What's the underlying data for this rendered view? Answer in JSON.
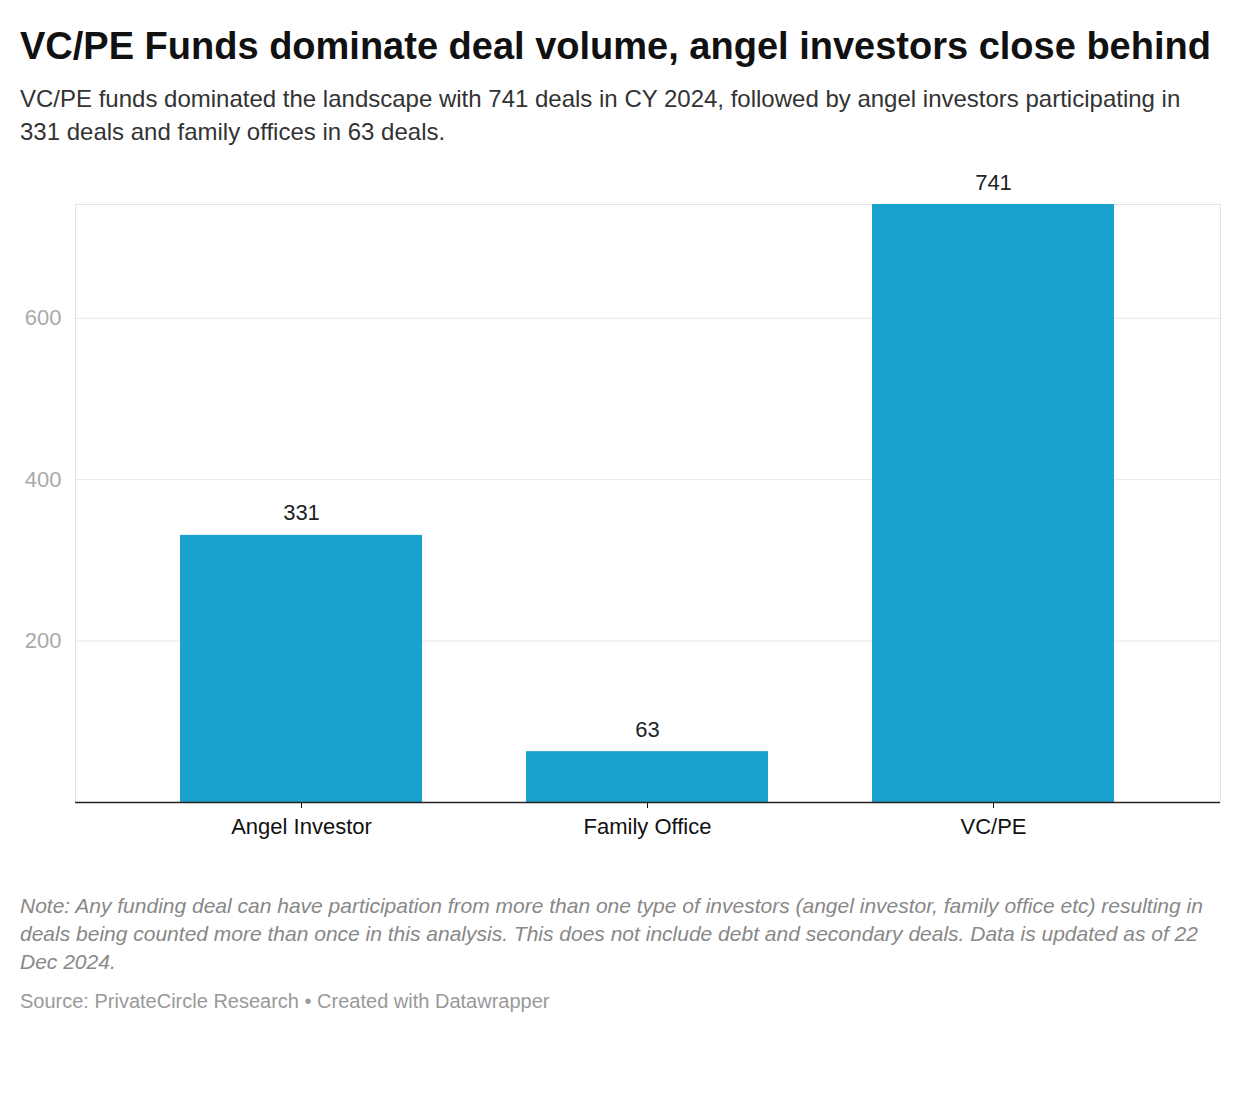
{
  "chart_data": {
    "type": "bar",
    "title": "VC/PE Funds dominate deal volume, angel investors close behind",
    "subtitle": "VC/PE funds dominated the landscape with 741 deals in CY 2024, followed by angel investors participating in 331 deals and family offices in 63 deals.",
    "categories": [
      "Angel Investor",
      "Family Office",
      "VC/PE"
    ],
    "values": [
      331,
      63,
      741
    ],
    "color": "#1ba1cf",
    "ylim": [
      0,
      741
    ],
    "yticks": [
      200,
      400,
      600
    ],
    "grid": true,
    "data_labels": true,
    "note": "Note: Any funding deal can have participation from more than one type of investors (angel investor, family office etc) resulting in deals being counted more than once in this analysis. This does not include debt and secondary deals. Data is updated as of 22 Dec 2024.",
    "source": "Source: PrivateCircle Research • Created with Datawrapper"
  }
}
